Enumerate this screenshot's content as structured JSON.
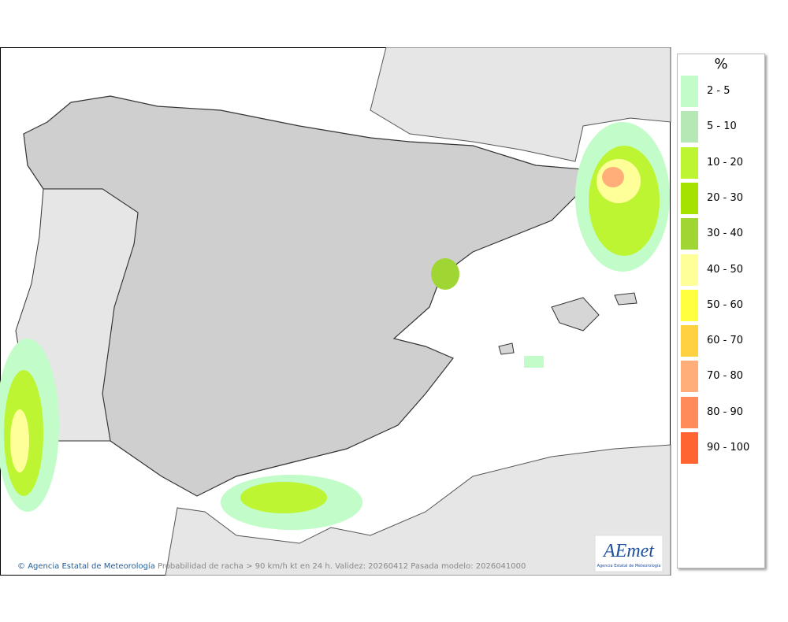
{
  "legend": {
    "title": "%",
    "items": [
      {
        "label": "2 - 5",
        "color": "#c2fcc8"
      },
      {
        "label": "5 - 10",
        "color": "#b6e8b6"
      },
      {
        "label": "10 - 20",
        "color": "#bdf533"
      },
      {
        "label": "20 - 30",
        "color": "#a6e200"
      },
      {
        "label": "30 - 40",
        "color": "#9fd634"
      },
      {
        "label": "40 - 50",
        "color": "#ffff9a"
      },
      {
        "label": "50 - 60",
        "color": "#ffff40"
      },
      {
        "label": "60 - 70",
        "color": "#ffd040"
      },
      {
        "label": "70 - 80",
        "color": "#ffae7a"
      },
      {
        "label": "80 - 90",
        "color": "#ff8a5a"
      },
      {
        "label": "90 - 100",
        "color": "#ff6431"
      }
    ]
  },
  "footer": {
    "agency": "Agencia Estatal de Meteorología",
    "caption": "Probabilidad de racha > 90 km/h kt en 24 h. Validez: 20260412 Pasada modelo: 2026041000"
  },
  "logo": {
    "mark": "AEmet",
    "subtitle": "Agencia Estatal de Meteorología"
  }
}
